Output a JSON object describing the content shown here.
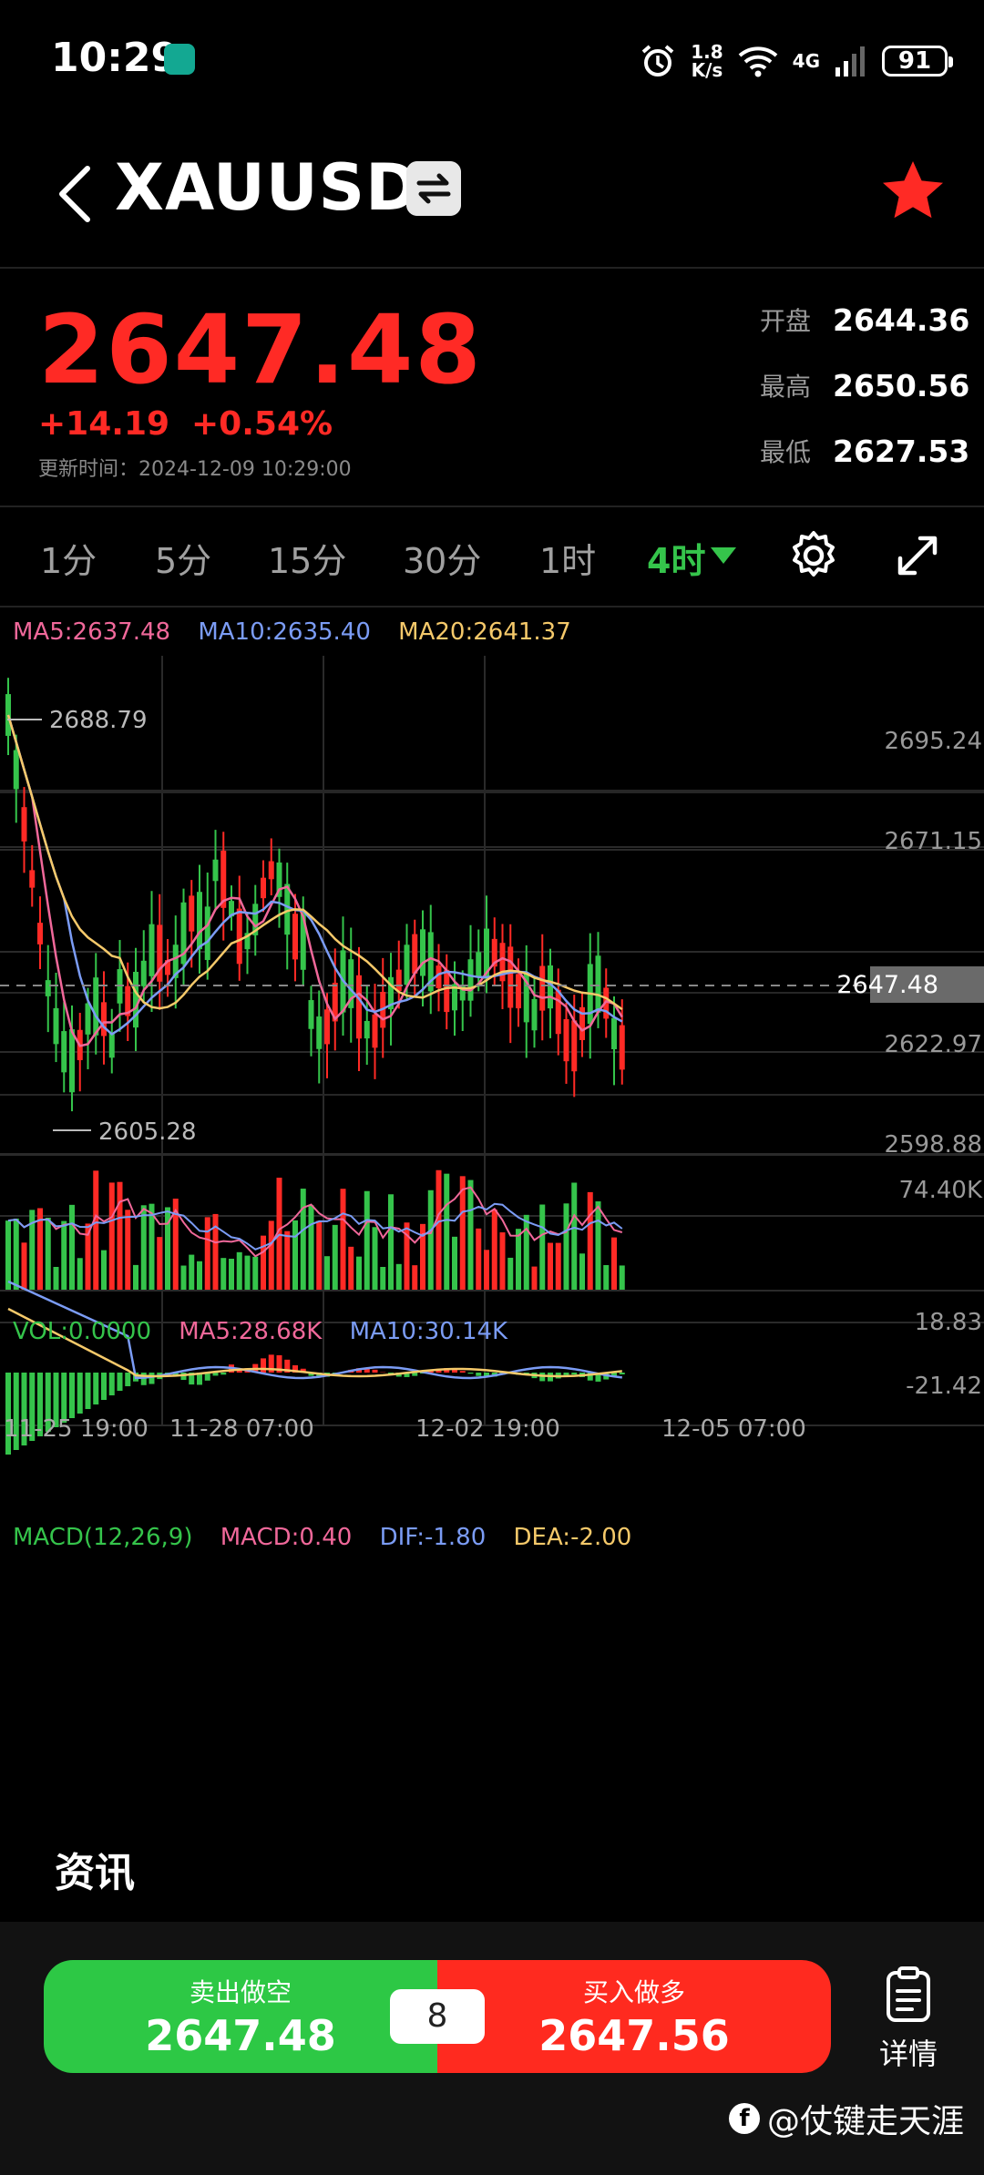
{
  "status_bar": {
    "time": "10:29",
    "net_speed_value": "1.8",
    "net_speed_unit": "K/s",
    "network_type": "4G",
    "battery": "91"
  },
  "header": {
    "symbol": "XAUUSD"
  },
  "quote": {
    "price": "2647.48",
    "change_abs": "+14.19",
    "change_pct": "+0.54%",
    "update_label": "更新时间：",
    "update_time": "2024-12-09 10:29:00",
    "stats": [
      {
        "label": "开盘",
        "value": "2644.36"
      },
      {
        "label": "最高",
        "value": "2650.56"
      },
      {
        "label": "最低",
        "value": "2627.53"
      }
    ]
  },
  "tabs": {
    "items": [
      "1分",
      "5分",
      "15分",
      "30分",
      "1时"
    ],
    "active": "4时"
  },
  "chart": {
    "ma_legend": [
      {
        "text": "MA5:2637.48",
        "color": "#f0689a"
      },
      {
        "text": "MA10:2635.40",
        "color": "#7b9cf5"
      },
      {
        "text": "MA20:2641.37",
        "color": "#f5c96a"
      }
    ],
    "price_axis": [
      "2695.24",
      "2671.15",
      "2622.97",
      "2598.88"
    ],
    "high_marker": "2688.79",
    "low_marker": "2605.28",
    "last_price_tag": "2647.48",
    "vol_legend": [
      {
        "text": "VOL:0.0000",
        "color": "#35c44b"
      },
      {
        "text": "MA5:28.68K",
        "color": "#f0689a"
      },
      {
        "text": "MA10:30.14K",
        "color": "#7b9cf5"
      }
    ],
    "vol_max": "74.40K",
    "macd_legend": [
      {
        "text": "MACD(12,26,9)",
        "color": "#35c44b"
      },
      {
        "text": "MACD:0.40",
        "color": "#f0689a"
      },
      {
        "text": "DIF:-1.80",
        "color": "#7b9cf5"
      },
      {
        "text": "DEA:-2.00",
        "color": "#f5c96a"
      }
    ],
    "macd_max": "18.83",
    "macd_min": "-21.42",
    "time_axis": [
      "11-25 19:00",
      "11-28 07:00",
      "12-02 19:00",
      "12-05 07:00"
    ],
    "colors": {
      "up": "#ff2a25",
      "down": "#35c44b",
      "ma5": "#f0689a",
      "ma10": "#7b9cf5",
      "ma20": "#f5c96a"
    }
  },
  "news": {
    "title": "资讯"
  },
  "bottom_bar": {
    "sell_label": "卖出做空",
    "sell_price": "2647.48",
    "spread": "8",
    "buy_label": "买入做多",
    "buy_price": "2647.56",
    "details_label": "详情"
  },
  "watermark": "@仗键走天涯"
}
